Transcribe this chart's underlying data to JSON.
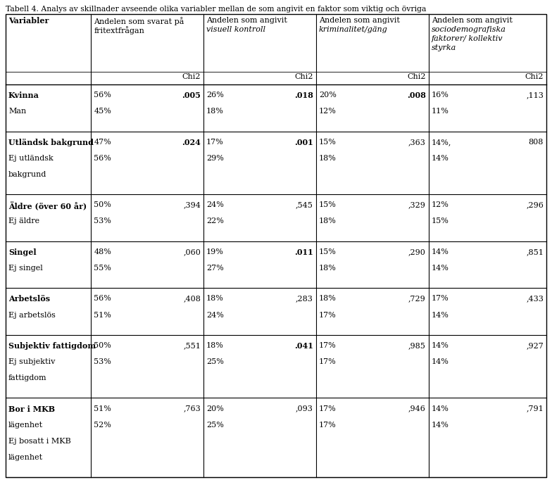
{
  "title": "Tabell 4. Analys av skillnader avseende olika variabler mellan de som angivit en faktor som viktig och övriga",
  "col0_header": "Variabler",
  "col_headers": [
    "Andelen som svarat på\nfritextfrågan",
    "Andelen som angivit\nvisuell kontroll",
    "Andelen som angivit\nkriminalitet/gäng",
    "Andelen som angivit\nsociodemografiska\nfaktorer/ kollektiv\nstyrka"
  ],
  "col_headers_italic": [
    [
      false,
      false
    ],
    [
      false,
      true
    ],
    [
      false,
      true
    ],
    [
      false,
      true,
      true,
      true
    ]
  ],
  "rows": [
    {
      "group_lines": [
        "Kvinna",
        "Man"
      ],
      "group_bold": [
        true,
        false
      ],
      "cols": [
        {
          "val": [
            "56%",
            "45%"
          ],
          "chi": ".005",
          "chi_bold": true
        },
        {
          "val": [
            "26%",
            "18%"
          ],
          "chi": ".018",
          "chi_bold": true
        },
        {
          "val": [
            "20%",
            "12%"
          ],
          "chi": ".008",
          "chi_bold": true
        },
        {
          "val": [
            "16%",
            "11%"
          ],
          "chi": ",113",
          "chi_bold": false
        }
      ]
    },
    {
      "group_lines": [
        "Utländsk bakgrund",
        "Ej utländsk",
        "bakgrund"
      ],
      "group_bold": [
        true,
        false,
        false
      ],
      "cols": [
        {
          "val": [
            "47%",
            "56%"
          ],
          "chi": ".024",
          "chi_bold": true
        },
        {
          "val": [
            "17%",
            "29%"
          ],
          "chi": ".001",
          "chi_bold": true
        },
        {
          "val": [
            "15%",
            "18%"
          ],
          "chi": ",363",
          "chi_bold": false
        },
        {
          "val": [
            "14%,",
            "14%"
          ],
          "chi": "808",
          "chi_bold": false
        }
      ]
    },
    {
      "group_lines": [
        "Äldre (över 60 år)",
        "Ej äldre"
      ],
      "group_bold": [
        true,
        false
      ],
      "cols": [
        {
          "val": [
            "50%",
            "53%"
          ],
          "chi": ",394",
          "chi_bold": false
        },
        {
          "val": [
            "24%",
            "22%"
          ],
          "chi": ",545",
          "chi_bold": false
        },
        {
          "val": [
            "15%",
            "18%"
          ],
          "chi": ",329",
          "chi_bold": false
        },
        {
          "val": [
            "12%",
            "15%"
          ],
          "chi": ",296",
          "chi_bold": false
        }
      ]
    },
    {
      "group_lines": [
        "Singel",
        "Ej singel"
      ],
      "group_bold": [
        true,
        false
      ],
      "cols": [
        {
          "val": [
            "48%",
            "55%"
          ],
          "chi": ",060",
          "chi_bold": false
        },
        {
          "val": [
            "19%",
            "27%"
          ],
          "chi": ".011",
          "chi_bold": true
        },
        {
          "val": [
            "15%",
            "18%"
          ],
          "chi": ",290",
          "chi_bold": false
        },
        {
          "val": [
            "14%",
            "14%"
          ],
          "chi": ",851",
          "chi_bold": false
        }
      ]
    },
    {
      "group_lines": [
        "Arbetslös",
        "Ej arbetslös"
      ],
      "group_bold": [
        true,
        false
      ],
      "cols": [
        {
          "val": [
            "56%",
            "51%"
          ],
          "chi": ",408",
          "chi_bold": false
        },
        {
          "val": [
            "18%",
            "24%"
          ],
          "chi": ",283",
          "chi_bold": false
        },
        {
          "val": [
            "18%",
            "17%"
          ],
          "chi": ",729",
          "chi_bold": false
        },
        {
          "val": [
            "17%",
            "14%"
          ],
          "chi": ",433",
          "chi_bold": false
        }
      ]
    },
    {
      "group_lines": [
        "Subjektiv fattigdom",
        "Ej subjektiv",
        "fattigdom"
      ],
      "group_bold": [
        true,
        false,
        false
      ],
      "cols": [
        {
          "val": [
            "50%",
            "53%"
          ],
          "chi": ",551",
          "chi_bold": false
        },
        {
          "val": [
            "18%",
            "25%"
          ],
          "chi": ".041",
          "chi_bold": true
        },
        {
          "val": [
            "17%",
            "17%"
          ],
          "chi": ",985",
          "chi_bold": false
        },
        {
          "val": [
            "14%",
            "14%"
          ],
          "chi": ",927",
          "chi_bold": false
        }
      ]
    },
    {
      "group_lines": [
        "Bor i MKB",
        "lägenhet",
        "Ej bosatt i MKB",
        "lägenhet"
      ],
      "group_bold": [
        true,
        false,
        false,
        false
      ],
      "cols": [
        {
          "val": [
            "51%",
            "52%"
          ],
          "chi": ",763",
          "chi_bold": false
        },
        {
          "val": [
            "20%",
            "25%"
          ],
          "chi": ",093",
          "chi_bold": false
        },
        {
          "val": [
            "17%",
            "17%"
          ],
          "chi": ",946",
          "chi_bold": false
        },
        {
          "val": [
            "14%",
            "14%"
          ],
          "chi": ",791",
          "chi_bold": false
        }
      ]
    }
  ],
  "bg_color": "#ffffff",
  "border_color": "#000000",
  "text_color": "#000000",
  "font_size": 8.0,
  "title_font_size": 7.8
}
